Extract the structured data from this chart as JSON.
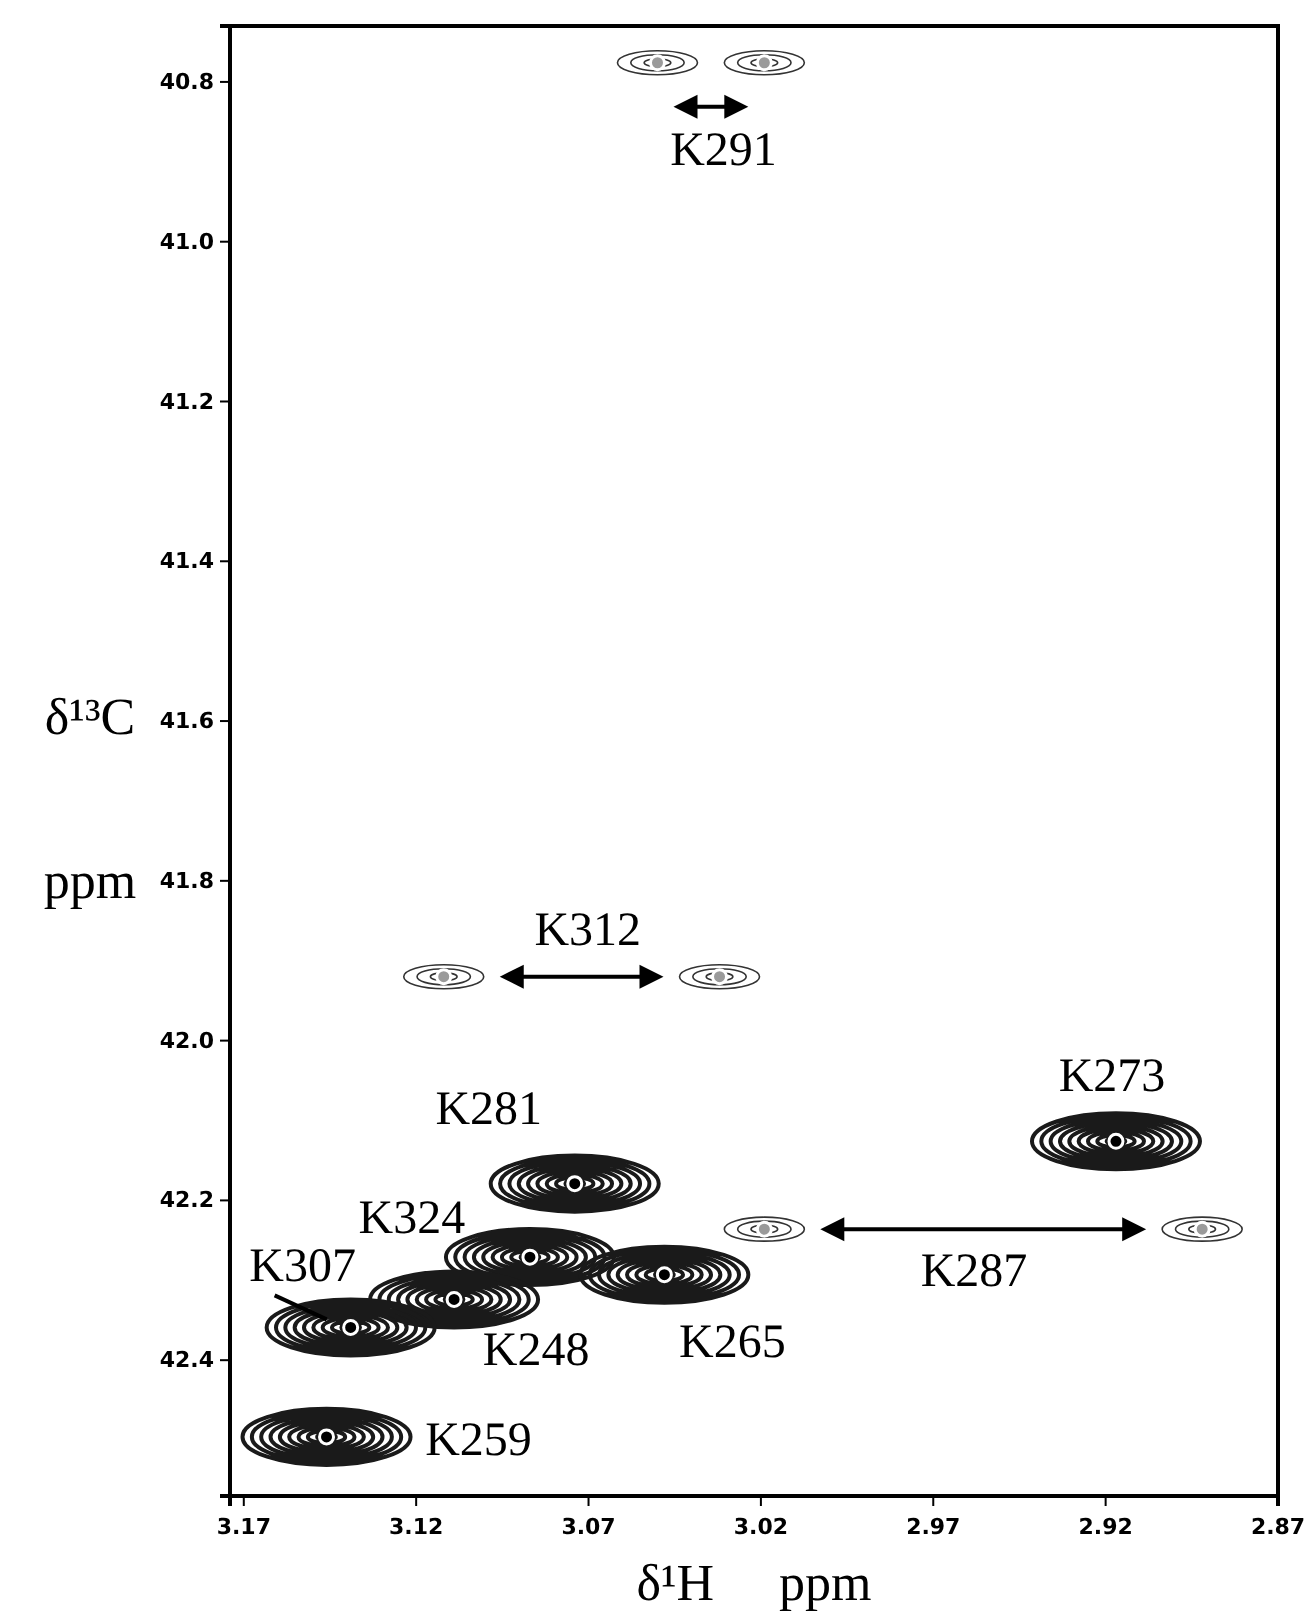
{
  "chart_data": {
    "type": "scatter",
    "xlabel": "δ¹H     ppm",
    "ylabel": "δ¹³C ppm",
    "xlim": [
      3.174,
      2.87
    ],
    "ylim": [
      42.57,
      40.73
    ],
    "xticks": [
      3.17,
      3.12,
      3.07,
      3.02,
      2.97,
      2.92,
      2.87
    ],
    "yticks": [
      40.8,
      {
        "value": 41.0,
        "label": "41.0"
      },
      41.2,
      41.4,
      41.6,
      41.8,
      {
        "value": 42.0,
        "label": "42.0"
      },
      42.2,
      42.4
    ],
    "series": [
      {
        "color": "#000000",
        "x": [
          2.917,
          3.074,
          3.087,
          3.109,
          3.139,
          3.048,
          3.146
        ],
        "values": [
          42.126,
          42.179,
          42.271,
          42.324,
          42.359,
          42.293,
          42.496
        ]
      },
      {
        "color": "#9a9a9a",
        "x": [
          3.05,
          3.019,
          3.112,
          3.032,
          3.019,
          2.892
        ],
        "values": [
          40.776,
          40.776,
          41.92,
          41.92,
          42.236,
          42.236
        ]
      }
    ],
    "annotations": [
      {
        "text": "K291",
        "x": 3.05,
        "y": 40.776
      },
      {
        "text": "K312",
        "x": 3.112,
        "y": 41.92
      },
      {
        "text": "K273",
        "x": 2.917,
        "y": 42.126
      },
      {
        "text": "K281",
        "x": 3.074,
        "y": 42.179
      },
      {
        "text": "K324",
        "x": 3.087,
        "y": 42.271
      },
      {
        "text": "K307",
        "x": 3.139,
        "y": 42.359
      },
      "K287",
      {
        "text": "K265",
        "x": 3.048,
        "y": 42.293
      },
      {
        "text": "K248",
        "x": 3.109,
        "y": 42.324
      },
      {
        "text": "K259",
        "x": 3.146,
        "y": 42.496
      }
    ],
    "grid": false
  }
}
